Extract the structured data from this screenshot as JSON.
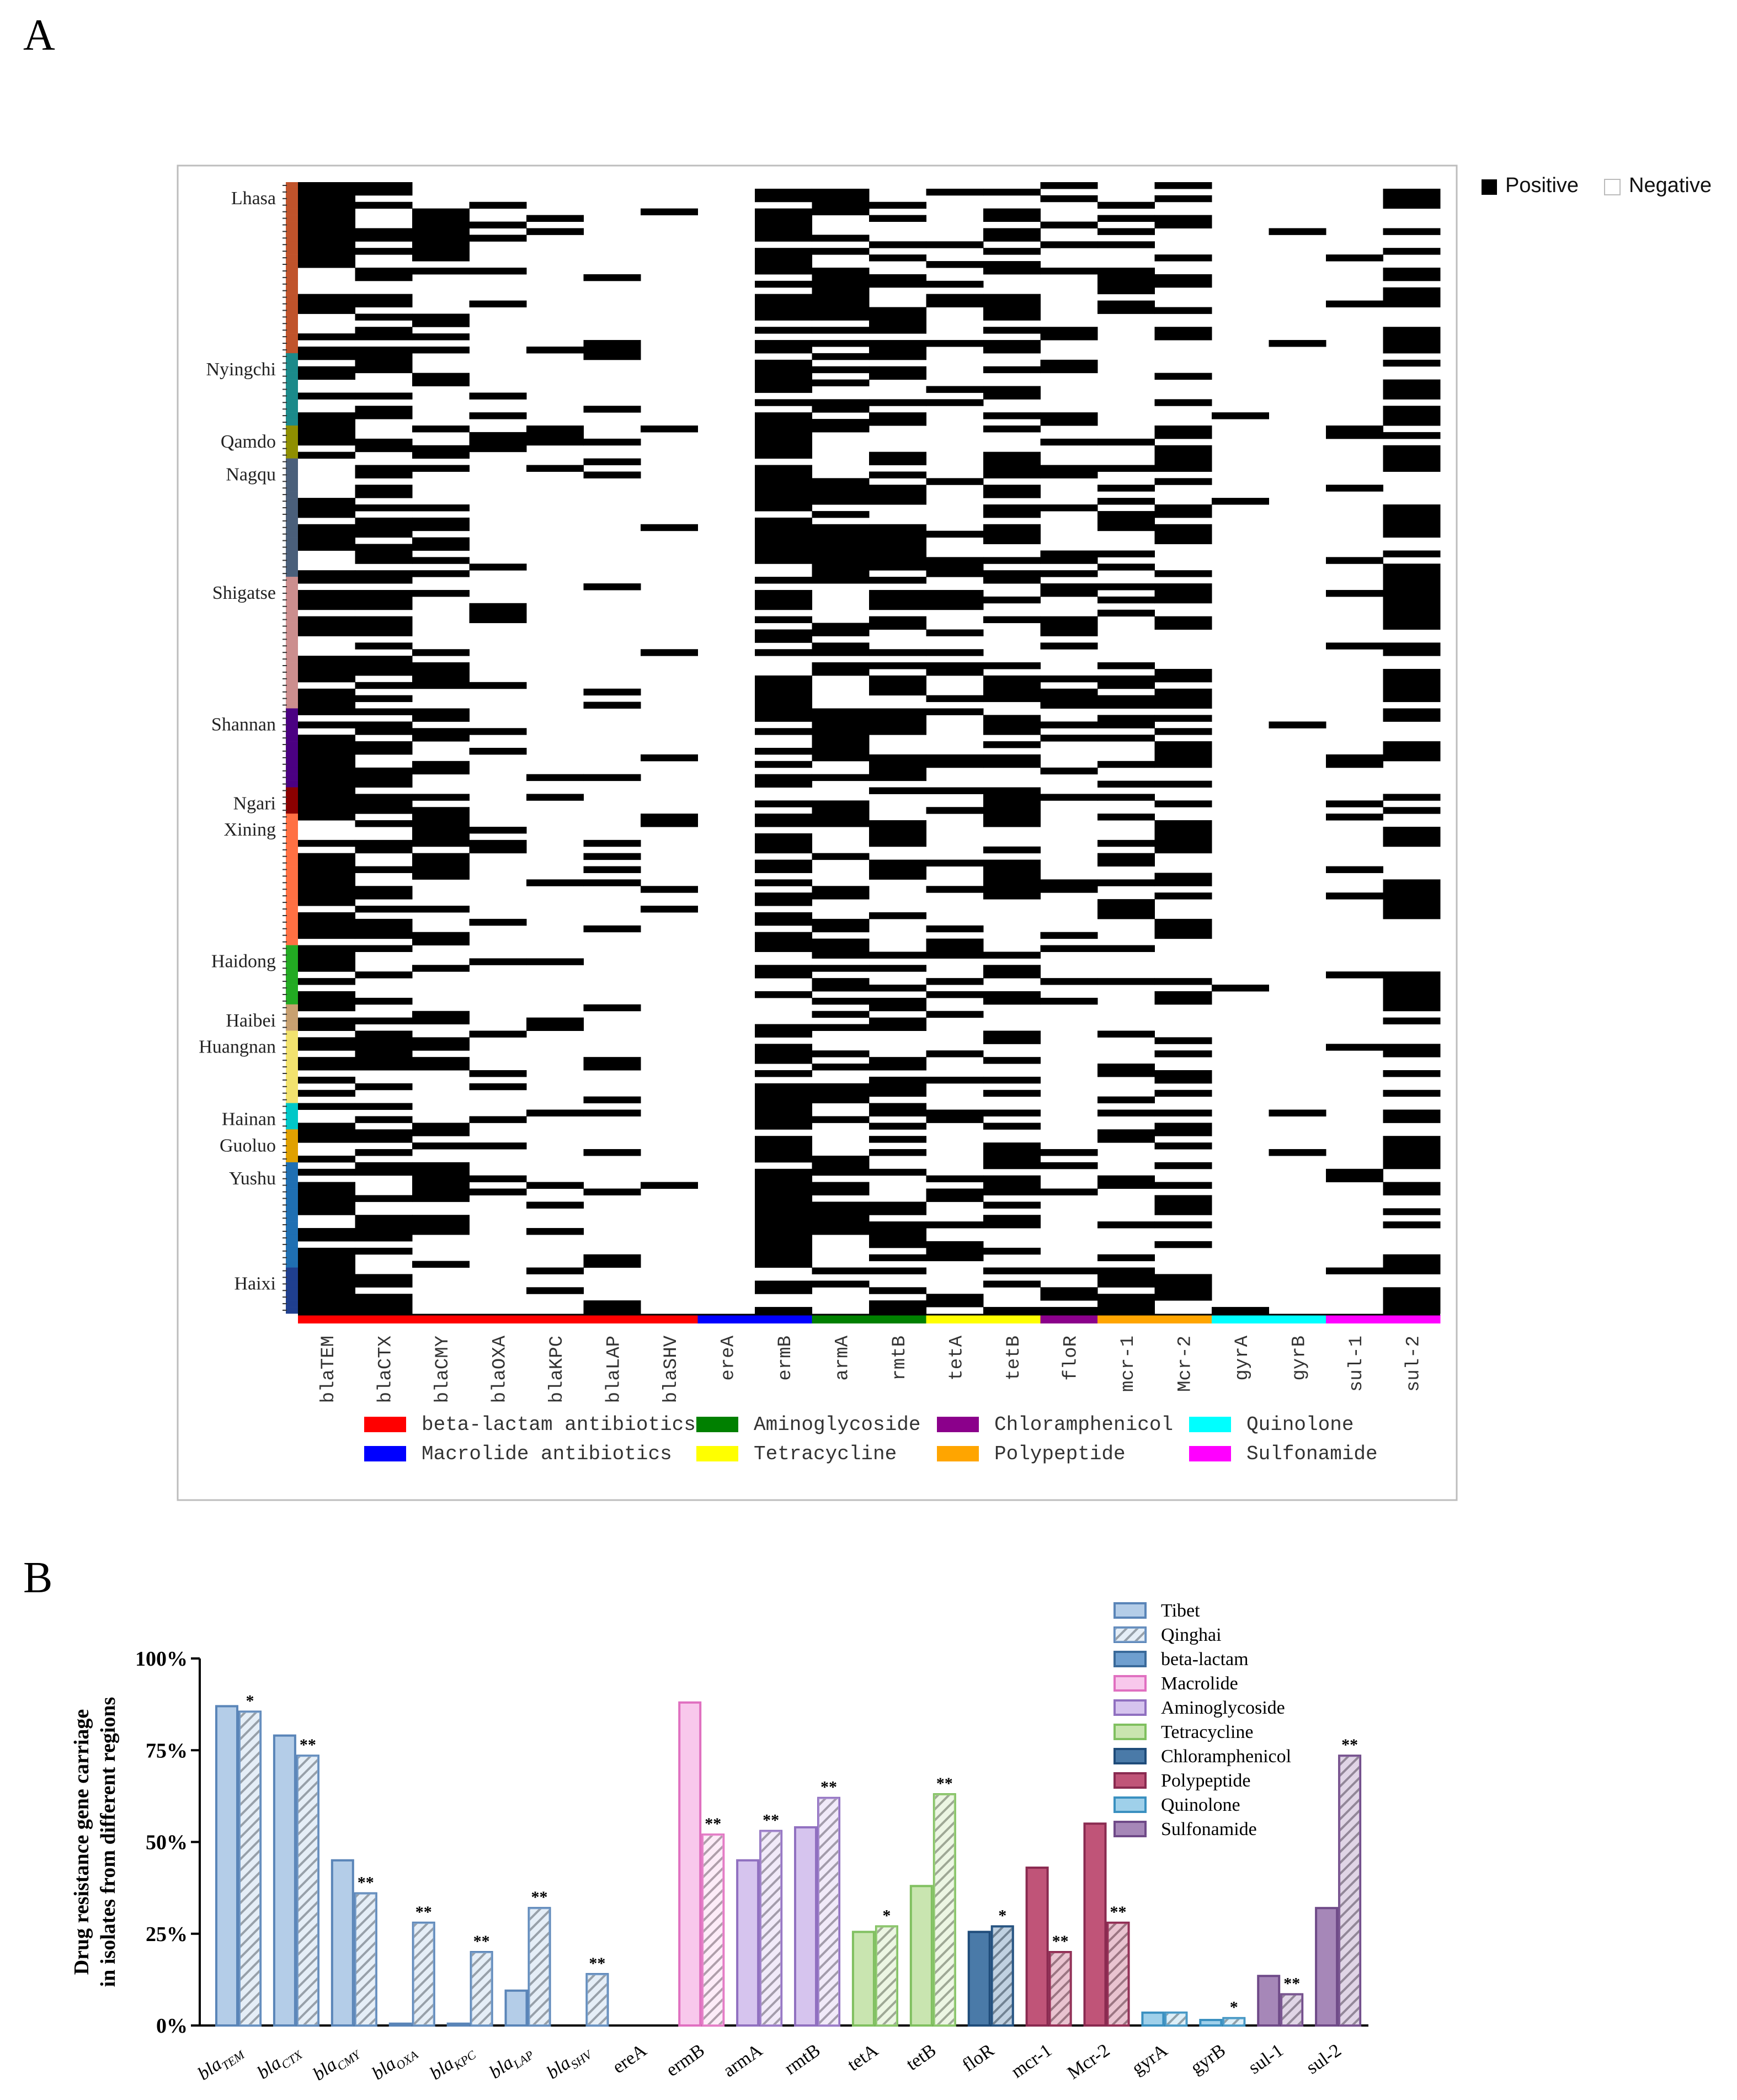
{
  "chart_data": [
    {
      "panel": "A",
      "type": "heatmap",
      "legend": {
        "positive": "Positive",
        "negative": "Negative"
      },
      "genes": [
        "blaTEM",
        "blaCTX",
        "blaCMY",
        "blaOXA",
        "blaKPC",
        "blaLAP",
        "blaSHV",
        "ereA",
        "ermB",
        "armA",
        "rmtB",
        "tetA",
        "tetB",
        "floR",
        "mcr-1",
        "Mcr-2",
        "gyrA",
        "gyrB",
        "sul-1",
        "sul-2"
      ],
      "gene_classes": [
        "beta",
        "beta",
        "beta",
        "beta",
        "beta",
        "beta",
        "beta",
        "macrolide",
        "macrolide",
        "aminoglycoside",
        "aminoglycoside",
        "tetracycline",
        "tetracycline",
        "chloramphenicol",
        "polypeptide",
        "polypeptide",
        "quinolone",
        "quinolone",
        "sulfonamide",
        "sulfonamide"
      ],
      "gene_groups": {
        "beta": "beta-lactam antibiotics",
        "macrolide": "Macrolide antibiotics",
        "aminoglycoside": "Aminoglycoside",
        "tetracycline": "Tetracycline",
        "chloramphenicol": "Chloramphenicol",
        "polypeptide": "Polypeptide",
        "quinolone": "Quinolone",
        "sulfonamide": "Sulfonamide"
      },
      "class_order": [
        "beta",
        "macrolide",
        "aminoglycoside",
        "tetracycline",
        "chloramphenicol",
        "polypeptide",
        "quinolone",
        "sulfonamide"
      ],
      "class_colors": {
        "beta": "#ff0000",
        "macrolide": "#0000ff",
        "aminoglycoside": "#008000",
        "tetracycline": "#ffff00",
        "chloramphenicol": "#8b008b",
        "polypeptide": "#ffa500",
        "quinolone": "#00ffff",
        "sulfonamide": "#ff00ff"
      },
      "regions": [
        {
          "name": "Lhasa",
          "rows": 26,
          "color": "#c0532b"
        },
        {
          "name": "Nyingchi",
          "rows": 11,
          "color": "#1b8a8a"
        },
        {
          "name": "Qamdo",
          "rows": 5,
          "color": "#8f8f00"
        },
        {
          "name": "Nagqu",
          "rows": 18,
          "color": "#4a5f7a"
        },
        {
          "name": "Shigatse",
          "rows": 20,
          "color": "#cc8e8e"
        },
        {
          "name": "Shannan",
          "rows": 12,
          "color": "#4b0082"
        },
        {
          "name": "Ngari",
          "rows": 4,
          "color": "#8b0000"
        },
        {
          "name": "Xining",
          "rows": 20,
          "color": "#ff7043"
        },
        {
          "name": "Haidong",
          "rows": 9,
          "color": "#22aa22"
        },
        {
          "name": "Haibei",
          "rows": 4,
          "color": "#c8a070"
        },
        {
          "name": "Huangnan",
          "rows": 11,
          "color": "#f2e26e"
        },
        {
          "name": "Hainan",
          "rows": 4,
          "color": "#00c8c8"
        },
        {
          "name": "Guoluo",
          "rows": 5,
          "color": "#e0a000"
        },
        {
          "name": "Yushu",
          "rows": 16,
          "color": "#1f6fb2"
        },
        {
          "name": "Haixi",
          "rows": 7,
          "color": "#1f3f8f"
        }
      ],
      "gene_rates": [
        0.72,
        0.6,
        0.45,
        0.14,
        0.12,
        0.2,
        0.07,
        0.0,
        0.68,
        0.48,
        0.58,
        0.27,
        0.52,
        0.26,
        0.34,
        0.42,
        0.03,
        0.02,
        0.1,
        0.55
      ]
    },
    {
      "panel": "B",
      "type": "bar",
      "ylabel_line1": "Drug resistance gene carriage",
      "ylabel_line2": "in isolates from different regions",
      "yticks": [
        "0%",
        "25%",
        "50%",
        "75%",
        "100%"
      ],
      "ylim": [
        0,
        100
      ],
      "categories": [
        "bla",
        "bla",
        "bla",
        "bla",
        "bla",
        "bla",
        "bla",
        "ereA",
        "ermB",
        "armA",
        "rmtB",
        "tetA",
        "tetB",
        "floR",
        "mcr-1",
        "Mcr-2",
        "gyrA",
        "gyrB",
        "sul-1",
        "sul-2"
      ],
      "category_subs": [
        "TEM",
        "CTX",
        "CMY",
        "OXA",
        "KPC",
        "LAP",
        "SHV",
        "",
        "",
        "",
        "",
        "",
        "",
        "",
        "",
        "",
        "",
        "",
        "",
        ""
      ],
      "category_class": [
        "beta",
        "beta",
        "beta",
        "beta",
        "beta",
        "beta",
        "beta",
        "macrolide",
        "macrolide",
        "aminoglycoside",
        "aminoglycoside",
        "tetracycline",
        "tetracycline",
        "chloramphenicol",
        "polypeptide",
        "polypeptide",
        "quinolone",
        "quinolone",
        "sulfonamide",
        "sulfonamide"
      ],
      "series": [
        {
          "name": "Tibet",
          "values": [
            87,
            79,
            45,
            0.5,
            0.5,
            9.5,
            0,
            0,
            88,
            45,
            54,
            25.5,
            38,
            25.5,
            43,
            55,
            3.5,
            1.5,
            13.5,
            32
          ]
        },
        {
          "name": "Qinghai",
          "values": [
            85.5,
            73.5,
            36,
            28,
            20,
            32,
            14,
            0,
            52,
            53,
            62,
            27,
            63,
            27,
            20,
            28,
            3.5,
            2,
            8.5,
            73.5
          ]
        }
      ],
      "significance": [
        "*",
        "**",
        "**",
        "**",
        "**",
        "**",
        "**",
        "",
        "**",
        "**",
        "**",
        "*",
        "**",
        "*",
        "**",
        "**",
        "",
        "*",
        "**",
        "**"
      ],
      "legend": [
        "Tibet",
        "Qinghai",
        "beta-lactam",
        "Macrolide",
        "Aminoglycoside",
        "Tetracycline",
        "Chloramphenicol",
        "Polypeptide",
        "Quinolone",
        "Sulfonamide"
      ],
      "class_fill": {
        "beta": "#b4cde8",
        "macrolide": "#f8c8ec",
        "aminoglycoside": "#d6c4ee",
        "tetracycline": "#c9e5b0",
        "chloramphenicol": "#4a7aa8",
        "polypeptide": "#c05478",
        "quinolone": "#9fd0ea",
        "sulfonamide": "#a687b8"
      },
      "class_stroke": {
        "beta": "#5a85b8",
        "macrolide": "#e070c0",
        "aminoglycoside": "#9070c0",
        "tetracycline": "#80c060",
        "chloramphenicol": "#1f4c7a",
        "polypeptide": "#8a2a50",
        "quinolone": "#3a90c0",
        "sulfonamide": "#6f4a88"
      },
      "legend_fill": [
        "#b4cde8",
        "#b4cde8",
        "#6f9fcf",
        "#f8c8ec",
        "#d6c4ee",
        "#c9e5b0",
        "#4a7aa8",
        "#c05478",
        "#9fd0ea",
        "#a687b8"
      ],
      "legend_stroke": [
        "#5a85b8",
        "#5a85b8",
        "#3a6a9a",
        "#e070c0",
        "#9070c0",
        "#80c060",
        "#1f4c7a",
        "#8a2a50",
        "#3a90c0",
        "#6f4a88"
      ]
    }
  ],
  "panel_labels": {
    "a": "A",
    "b": "B"
  }
}
